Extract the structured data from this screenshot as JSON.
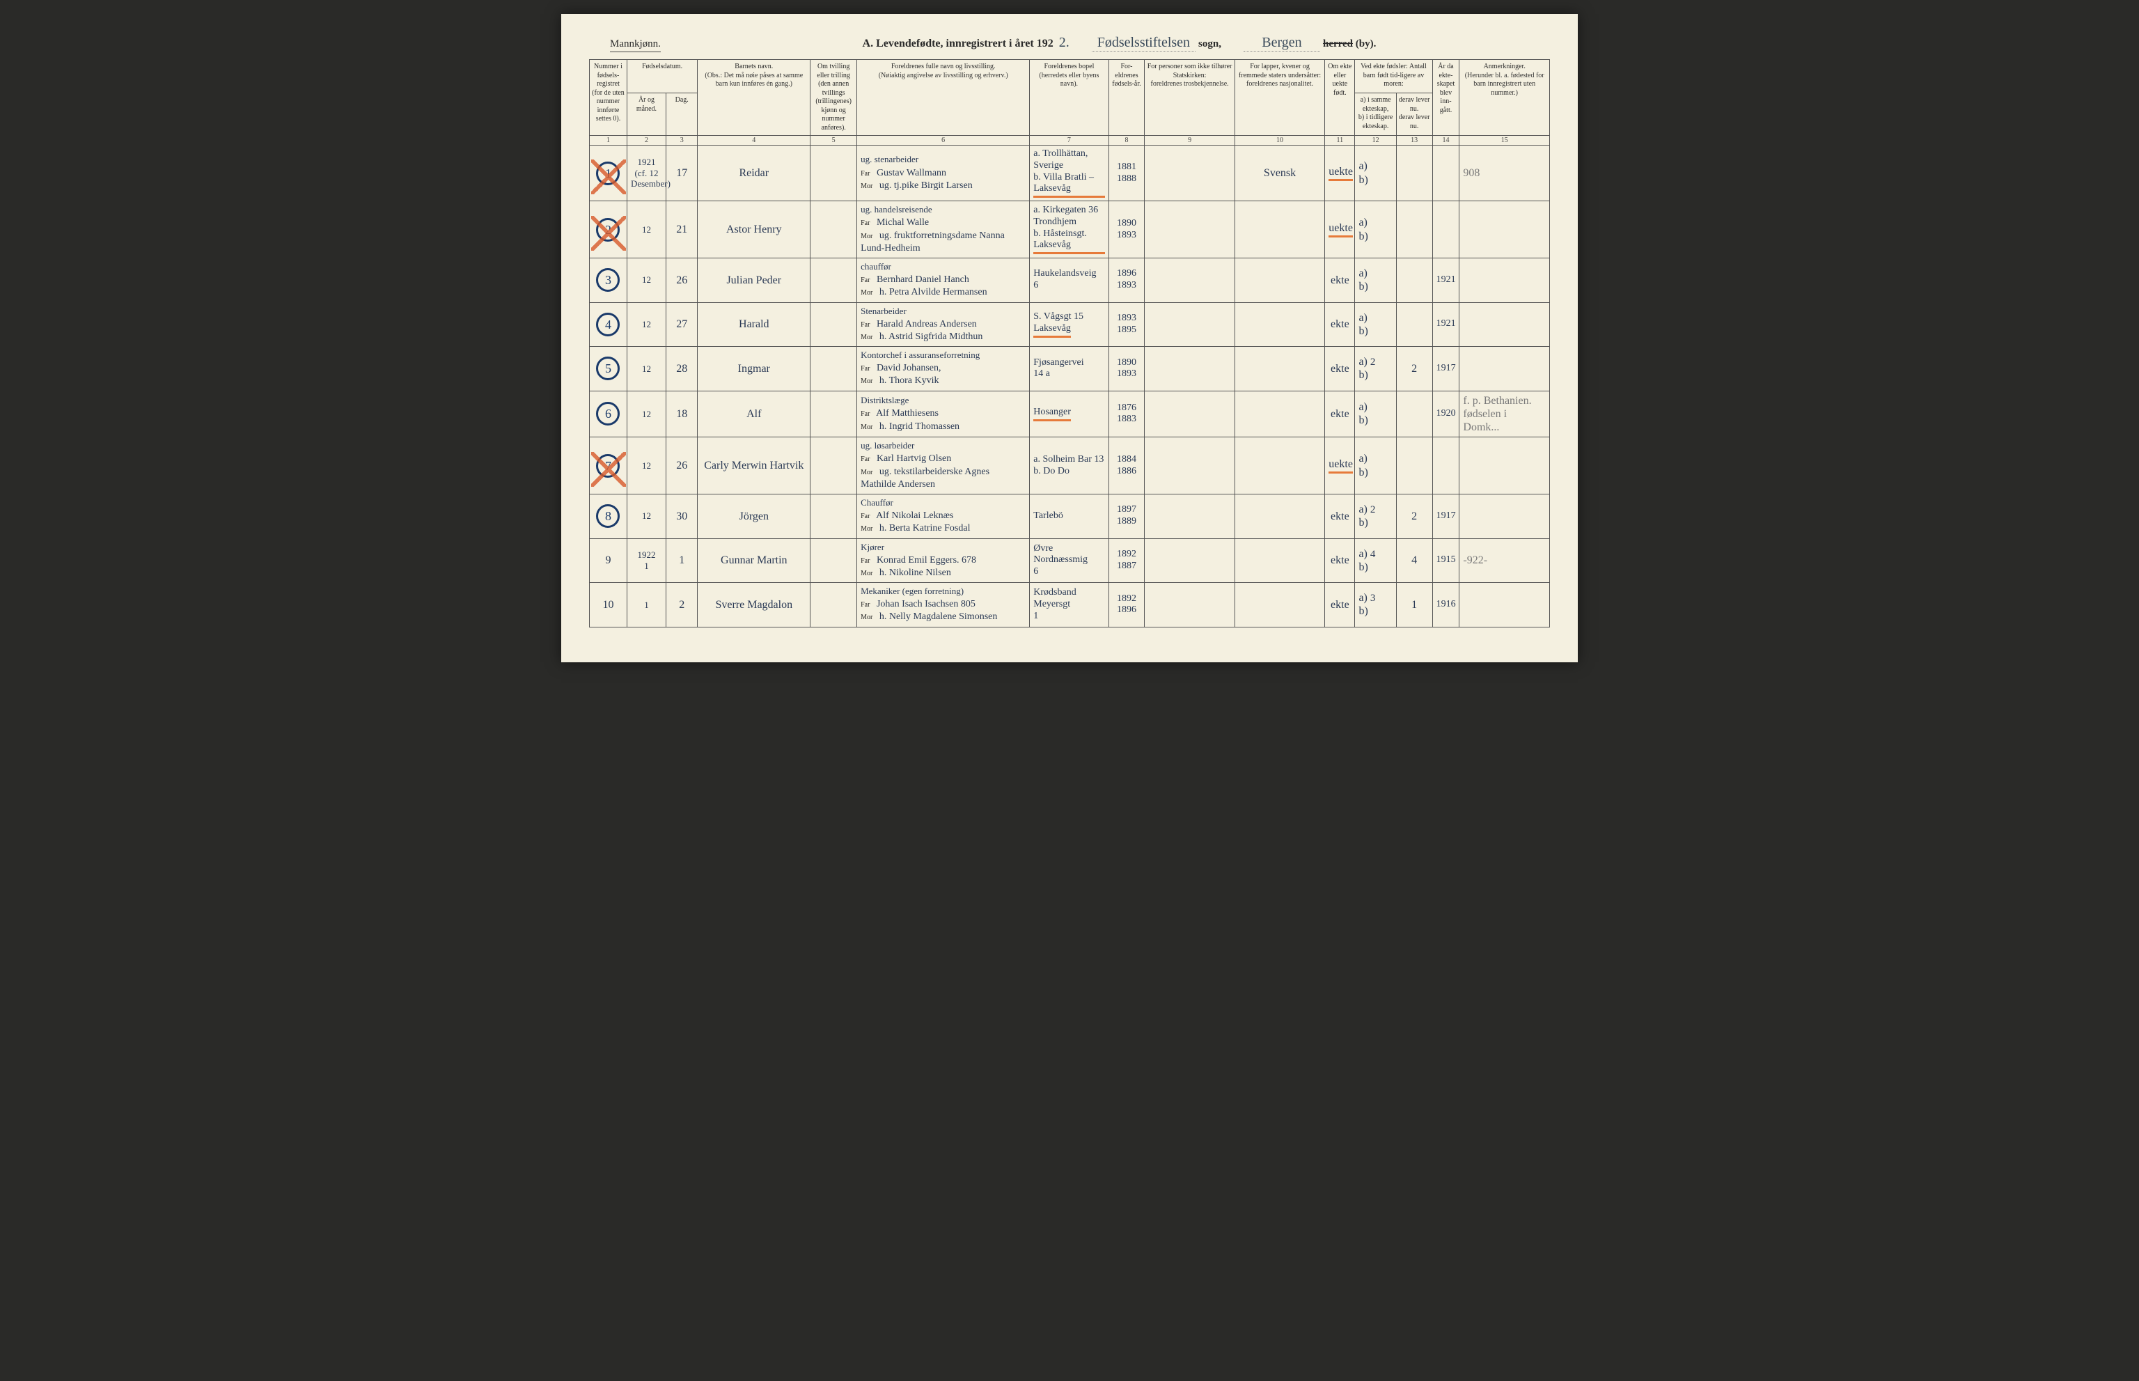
{
  "page": {
    "background_color": "#f4f0e0",
    "ink_color": "#2b3a55",
    "pencil_color": "#7a7a7a",
    "circle_color": "#1a3a6a",
    "red_mark_color": "#d85a2a",
    "orange_underline_color": "#e67a3a",
    "border_color": "#555555"
  },
  "header": {
    "gender": "Mannkjønn.",
    "title_prefix": "A.  Levendefødte, innregistrert i året 192",
    "year_suffix": "2.",
    "parish_script": "Fødselsstiftelsen",
    "parish_label": "sogn,",
    "district_script": "Bergen",
    "district_label_strike": "herred",
    "district_label_after": "(by)."
  },
  "columns": {
    "c1": "Nummer i fødsels-registret (for de uten nummer innførte settes 0).",
    "c_fd": "Fødselsdatum.",
    "c2": "År og måned.",
    "c3": "Dag.",
    "c4": "Barnets navn.",
    "c4_note": "(Obs.: Det må nøie påses at samme barn kun innføres én gang.)",
    "c5": "Om tvilling eller trilling (den annen tvillings (trillingenes) kjønn og nummer anføres).",
    "c6": "Foreldrenes fulle navn og livsstilling.",
    "c6_note": "(Nøiaktig angivelse av livsstilling og erhverv.)",
    "c7": "Foreldrenes bopel",
    "c7_note": "(herredets eller byens navn).",
    "c8": "For-eldrenes fødsels-år.",
    "c9": "For personer som ikke tilhører Statskirken:",
    "c9_note": "foreldrenes trosbekjennelse.",
    "c10": "For lapper, kvener og fremmede staters undersåtter:",
    "c10_note": "foreldrenes nasjonalitet.",
    "c11": "Om ekte eller uekte født.",
    "c_ved": "Ved ekte fødsler: Antall barn født tid-ligere av moren:",
    "c12": "a) i samme ekteskap,",
    "c12b": "b) i tidligere ekteskap.",
    "c13": "derav lever nu.",
    "c13b": "derav lever nu.",
    "c14": "År da ekte-skapet blev inn-gått.",
    "c15": "Anmerkninger.",
    "c15_note": "(Herunder bl. a. fødested for barn innregistrert uten nummer.)",
    "far": "Far",
    "mor": "Mor"
  },
  "colnums": [
    "1",
    "2",
    "3",
    "4",
    "5",
    "6",
    "7",
    "8",
    "9",
    "10",
    "11",
    "12",
    "13",
    "14",
    "15"
  ],
  "rows": [
    {
      "num": "1",
      "circled": true,
      "red_x": true,
      "year_month": "1921\n(cf. 12\nDesember)",
      "day": "17",
      "name": "Reidar",
      "far_occ": "ug. stenarbeider",
      "far_name": "Gustav Wallmann",
      "mor_name": "ug. tj.pike  Birgit Larsen",
      "bopel_a": "a. Trollhättan, Sverige",
      "bopel_b": "b. Villa Bratli – Laksevåg",
      "bopel_b_und": true,
      "far_year": "1881",
      "mor_year": "1888",
      "nasj": "Svensk",
      "ekte": "uekte",
      "ekte_und": true,
      "a": "",
      "b": "",
      "lever": "",
      "ekteskap_aar": "",
      "anm": "908"
    },
    {
      "num": "2",
      "circled": true,
      "red_x": true,
      "year_month": "12",
      "day": "21",
      "name": "Astor Henry",
      "far_occ": "ug. handelsreisende",
      "far_name": "Michal Walle",
      "mor_name": "ug. fruktforretningsdame  Nanna Lund-Hedheim",
      "bopel_a": "a. Kirkegaten 36  Trondhjem",
      "bopel_b": "b. Håsteinsgt.  Laksevåg",
      "bopel_b_und": true,
      "far_year": "1890",
      "mor_year": "1893",
      "nasj": "",
      "ekte": "uekte",
      "ekte_und": true,
      "a": "",
      "b": "",
      "lever": "",
      "ekteskap_aar": "",
      "anm": ""
    },
    {
      "num": "3",
      "circled": true,
      "red_x": false,
      "year_month": "12",
      "day": "26",
      "name": "Julian Peder",
      "far_occ": "chauffør",
      "far_name": "Bernhard Daniel Hanch",
      "mor_name": "h. Petra Alvilde Hermansen",
      "bopel_a": "Haukelandsveig",
      "bopel_b": "6",
      "far_year": "1896",
      "mor_year": "1893",
      "nasj": "",
      "ekte": "ekte",
      "a": "",
      "b": "",
      "lever": "",
      "ekteskap_aar": "1921",
      "anm": ""
    },
    {
      "num": "4",
      "circled": true,
      "red_x": false,
      "year_month": "12",
      "day": "27",
      "name": "Harald",
      "far_occ": "Stenarbeider",
      "far_name": "Harald Andreas Andersen",
      "mor_name": "h. Astrid Sigfrida Midthun",
      "bopel_a": "S. Vågsgt 15",
      "bopel_b": "Laksevåg",
      "bopel_b_und": true,
      "far_year": "1893",
      "mor_year": "1895",
      "nasj": "",
      "ekte": "ekte",
      "a": "",
      "b": "",
      "lever": "",
      "ekteskap_aar": "1921",
      "anm": ""
    },
    {
      "num": "5",
      "circled": true,
      "red_x": false,
      "year_month": "12",
      "day": "28",
      "name": "Ingmar",
      "far_occ": "Kontorchef i assuranseforretning",
      "far_name": "David Johansen,",
      "mor_name": "h. Thora Kyvik",
      "bopel_a": "Fjøsangervei",
      "bopel_b": "14 a",
      "far_year": "1890",
      "mor_year": "1893",
      "nasj": "",
      "ekte": "ekte",
      "a": "2",
      "b": "",
      "lever": "2",
      "ekteskap_aar": "1917",
      "anm": ""
    },
    {
      "num": "6",
      "circled": true,
      "red_x": false,
      "year_month": "12",
      "day": "18",
      "name": "Alf",
      "far_occ": "Distriktslæge",
      "far_name": "Alf Matthiesens",
      "mor_name": "h. Ingrid Thomassen",
      "bopel_a": "Hosanger",
      "bopel_a_und": true,
      "bopel_b": "",
      "far_year": "1876",
      "mor_year": "1883",
      "nasj": "",
      "ekte": "ekte",
      "a": "",
      "b": "",
      "lever": "",
      "ekteskap_aar": "1920",
      "anm": "f. p. Bethanien.  fødselen i Domk..."
    },
    {
      "num": "7",
      "circled": true,
      "red_x": true,
      "year_month": "12",
      "day": "26",
      "name": "Carly Merwin Hartvik",
      "far_occ": "ug. løsarbeider",
      "far_name": "Karl Hartvig Olsen",
      "mor_name": "ug. tekstilarbeiderske  Agnes Mathilde Andersen",
      "bopel_a": "a. Solheim Bar 13",
      "bopel_b": "b.    Do     Do",
      "far_year": "1884",
      "mor_year": "1886",
      "nasj": "",
      "ekte": "uekte",
      "ekte_und": true,
      "a": "",
      "b": "",
      "lever": "",
      "ekteskap_aar": "",
      "anm": ""
    },
    {
      "num": "8",
      "circled": true,
      "red_x": false,
      "year_month": "12",
      "day": "30",
      "name": "Jörgen",
      "far_occ": "Chauffør",
      "far_name": "Alf Nikolai Leknæs",
      "mor_name": "h. Berta Katrine Fosdal",
      "bopel_a": "Tarlebö",
      "bopel_b": "",
      "far_year": "1897",
      "mor_year": "1889",
      "nasj": "",
      "ekte": "ekte",
      "a": "2",
      "b": "",
      "lever": "2",
      "ekteskap_aar": "1917",
      "anm": ""
    },
    {
      "num": "9",
      "circled": false,
      "red_x": false,
      "year_month": "1922\n1",
      "day": "1",
      "name": "Gunnar Martin",
      "far_occ": "Kjører",
      "far_name": "Konrad Emil Eggers.    678",
      "mor_name": "h. Nikoline Nilsen",
      "bopel_a": "Øvre Nordnæssmig",
      "bopel_b": "6",
      "far_year": "1892",
      "mor_year": "1887",
      "nasj": "",
      "ekte": "ekte",
      "a": "4",
      "b": "",
      "lever": "4",
      "ekteskap_aar": "1915",
      "anm": "-922-"
    },
    {
      "num": "10",
      "circled": false,
      "red_x": false,
      "year_month": "1",
      "day": "2",
      "name": "Sverre Magdalon",
      "far_occ": "Mekaniker (egen forretning)",
      "far_name": "Johan Isach Isachsen    805",
      "mor_name": "h. Nelly Magdalene Simonsen",
      "bopel_a": "Krødsband Meyersgt",
      "bopel_b": "1",
      "far_year": "1892",
      "mor_year": "1896",
      "nasj": "",
      "ekte": "ekte",
      "a": "3",
      "b": "",
      "lever": "1",
      "ekteskap_aar": "1916",
      "anm": ""
    }
  ]
}
